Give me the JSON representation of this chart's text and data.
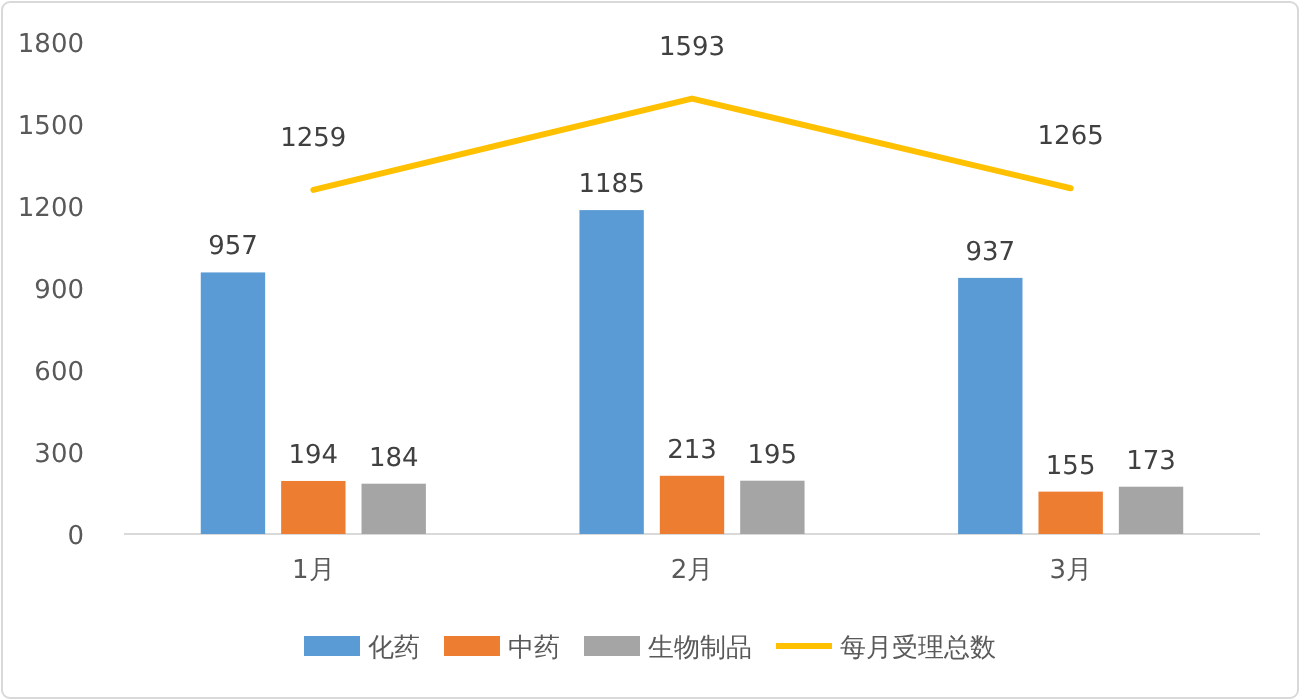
{
  "chart_data": {
    "type": "bar",
    "categories": [
      "1月",
      "2月",
      "3月"
    ],
    "series": [
      {
        "name": "化药",
        "color": "#5b9bd5",
        "values": [
          957,
          1185,
          937
        ]
      },
      {
        "name": "中药",
        "color": "#ed7d31",
        "values": [
          194,
          213,
          155
        ]
      },
      {
        "name": "生物制品",
        "color": "#a5a5a5",
        "values": [
          184,
          195,
          173
        ]
      },
      {
        "name": "每月受理总数",
        "type": "line",
        "color": "#ffc000",
        "values": [
          1259,
          1593,
          1265
        ]
      }
    ],
    "ylim": [
      0,
      1800
    ],
    "yticks": [
      0,
      300,
      600,
      900,
      1200,
      1500,
      1800
    ],
    "data_labels": true,
    "legend": "bottom"
  }
}
